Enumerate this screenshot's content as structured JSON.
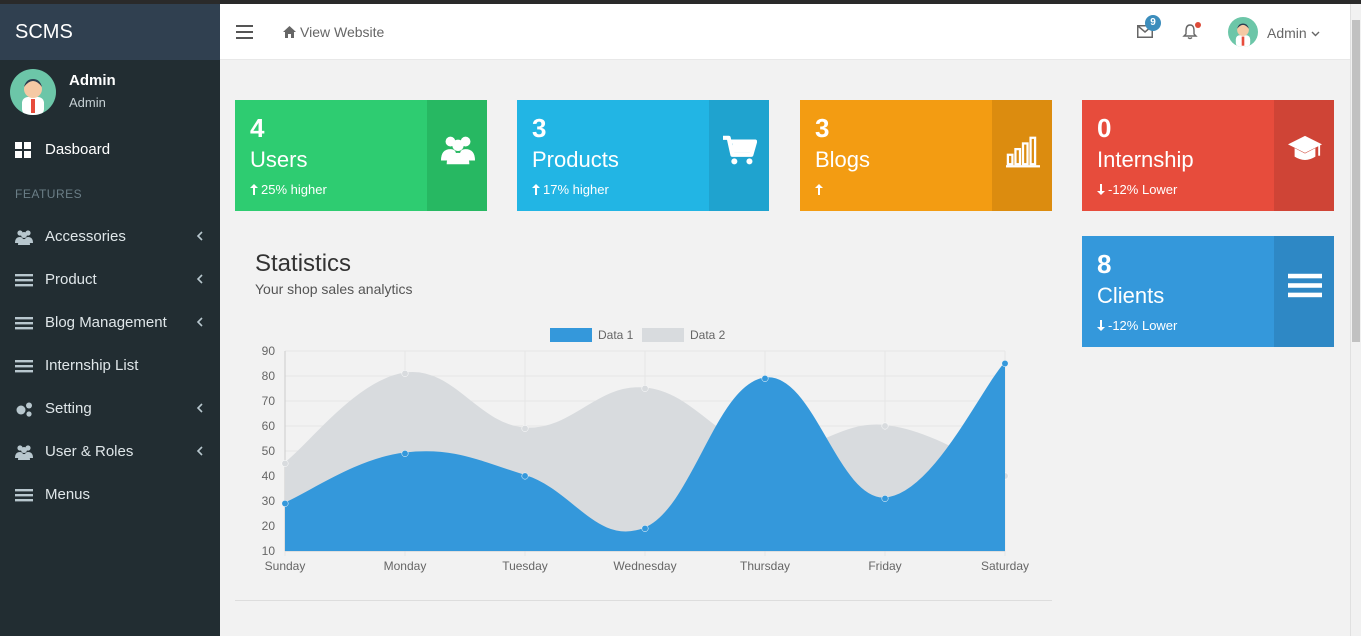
{
  "sidebar": {
    "brand": "SCMS",
    "user": {
      "name": "Admin",
      "role": "Admin"
    },
    "dashboard_label": "Dasboard",
    "section_label": "FEATURES",
    "items": [
      {
        "label": "Accessories",
        "icon": "users-icon",
        "chevron": true
      },
      {
        "label": "Product",
        "icon": "bars-icon",
        "chevron": true
      },
      {
        "label": "Blog Management",
        "icon": "bars-icon",
        "chevron": true
      },
      {
        "label": "Internship List",
        "icon": "bars-icon",
        "chevron": false
      },
      {
        "label": "Setting",
        "icon": "gears-icon",
        "chevron": true
      },
      {
        "label": "User & Roles",
        "icon": "users-icon",
        "chevron": true
      },
      {
        "label": "Menus",
        "icon": "bars-icon",
        "chevron": false
      }
    ]
  },
  "header": {
    "view_website": "View Website",
    "mail_count": "9",
    "user_name": "Admin"
  },
  "stats": [
    {
      "value": "4",
      "label": "Users",
      "note": "25% higher",
      "trend": "up",
      "color": "#2ecc71",
      "side_color": "#27b862",
      "icon": "users-icon"
    },
    {
      "value": "3",
      "label": "Products",
      "note": "17% higher",
      "trend": "up",
      "color": "#22b5e4",
      "side_color": "#1fa3cf",
      "icon": "cart-icon"
    },
    {
      "value": "3",
      "label": "Blogs",
      "note": "",
      "trend": "up",
      "color": "#f39c12",
      "side_color": "#dc8c0f",
      "icon": "bar-chart-icon"
    },
    {
      "value": "0",
      "label": "Internship",
      "note": "-12% Lower",
      "trend": "down",
      "color": "#e74c3c",
      "side_color": "#cf4436",
      "icon": "graduation-cap-icon"
    },
    {
      "value": "8",
      "label": "Clients",
      "note": "-12% Lower",
      "trend": "down",
      "color": "#3498db",
      "side_color": "#2e88c5",
      "icon": "bars-icon"
    }
  ],
  "statistics": {
    "title": "Statistics",
    "subtitle": "Your shop sales analytics"
  },
  "chart_data": {
    "type": "area",
    "categories": [
      "Sunday",
      "Monday",
      "Tuesday",
      "Wednesday",
      "Thursday",
      "Friday",
      "Saturday"
    ],
    "series": [
      {
        "name": "Data 1",
        "values": [
          29,
          49,
          40,
          19,
          79,
          31,
          85
        ],
        "color": "#3498db"
      },
      {
        "name": "Data 2",
        "values": [
          45,
          81,
          59,
          75,
          50,
          60,
          40
        ],
        "color": "#d8dbde"
      }
    ],
    "ylim": [
      10,
      90
    ],
    "yticks": [
      10,
      20,
      30,
      40,
      50,
      60,
      70,
      80,
      90
    ],
    "grid": true,
    "legend": "top-center"
  }
}
